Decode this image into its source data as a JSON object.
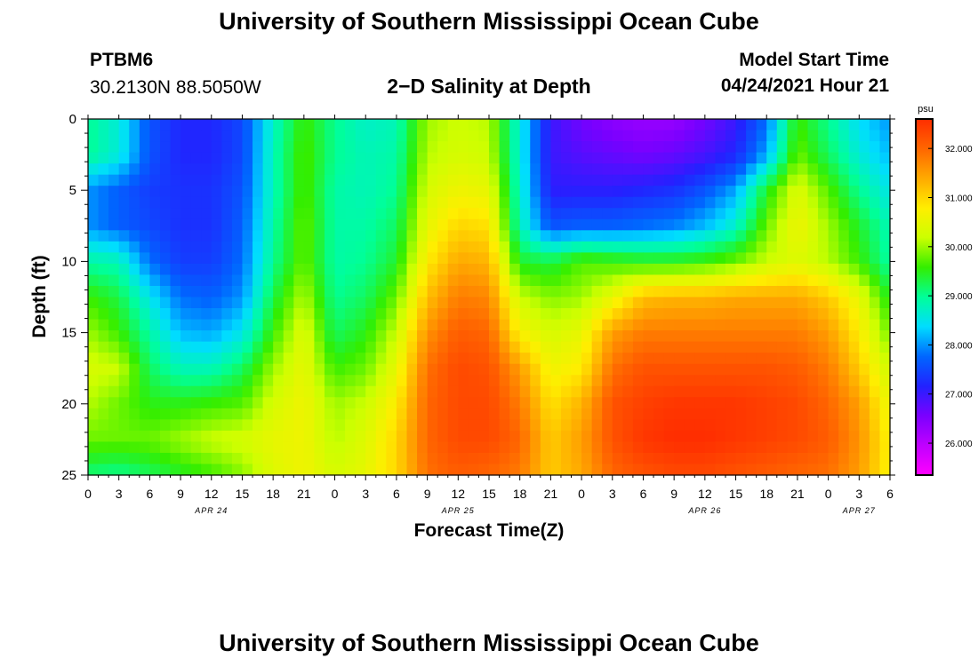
{
  "header": {
    "title": "University of Southern Mississippi Ocean Cube",
    "station_id": "PTBM6",
    "station_coords": "30.2130N  88.5050W",
    "chart_title": "2−D Salinity at Depth",
    "model_start_label": "Model Start Time",
    "model_start_value": "04/24/2021 Hour 21"
  },
  "footer": {
    "title": "University of Southern Mississippi Ocean Cube"
  },
  "colors": {
    "scale": [
      "#ff00ff",
      "#c000ff",
      "#7a00ff",
      "#2222ff",
      "#0066ff",
      "#00ddff",
      "#00ff99",
      "#33ee00",
      "#ccff00",
      "#ffee00",
      "#ffaa00",
      "#ff6600",
      "#ff2d00"
    ]
  },
  "chart_data": {
    "type": "heatmap",
    "title": "2−D Salinity at Depth",
    "xlabel": "Forecast Time(Z)",
    "ylabel": "Depth (ft)",
    "colorbar_unit": "psu",
    "x_tick_labels": [
      "0",
      "3",
      "6",
      "9",
      "12",
      "15",
      "18",
      "21",
      "0",
      "3",
      "6",
      "9",
      "12",
      "15",
      "18",
      "21",
      "0",
      "3",
      "6",
      "9",
      "12",
      "15",
      "18",
      "21",
      "0",
      "3",
      "6"
    ],
    "date_labels": [
      {
        "label": "APR 24",
        "at_tick": 4
      },
      {
        "label": "APR 25",
        "at_tick": 12
      },
      {
        "label": "APR 26",
        "at_tick": 20
      },
      {
        "label": "APR 27",
        "at_tick": 25
      }
    ],
    "y_ticks": [
      0,
      5,
      10,
      15,
      20,
      25
    ],
    "ylim": [
      0,
      25
    ],
    "x_hours_range": [
      0,
      78
    ],
    "colorbar_ticks": [
      "32.000",
      "31.000",
      "30.000",
      "29.000",
      "28.000",
      "27.000",
      "26.000"
    ],
    "colorbar_range": [
      25.35,
      32.6
    ],
    "depths_ft": [
      0,
      2.5,
      5,
      7.5,
      10,
      12.5,
      15,
      17.5,
      20,
      22.5,
      25
    ],
    "time_hours": [
      0,
      3,
      6,
      9,
      12,
      15,
      18,
      21,
      24,
      27,
      30,
      33,
      36,
      39,
      42,
      45,
      48,
      51,
      54,
      57,
      60,
      63,
      66,
      69,
      72,
      75,
      78
    ],
    "salinity_psu": [
      [
        29.0,
        28.6,
        27.6,
        27.2,
        27.2,
        27.5,
        28.7,
        29.6,
        29.0,
        28.7,
        28.8,
        30.0,
        30.2,
        30.1,
        28.6,
        27.0,
        26.6,
        26.4,
        26.3,
        26.3,
        26.6,
        27.0,
        27.8,
        29.6,
        29.0,
        28.4,
        28.0
      ],
      [
        29.0,
        28.6,
        27.6,
        27.2,
        27.2,
        27.5,
        28.8,
        29.7,
        29.0,
        28.8,
        28.9,
        30.1,
        30.3,
        30.2,
        28.6,
        27.0,
        26.8,
        26.7,
        26.6,
        26.7,
        26.9,
        27.2,
        28.1,
        29.8,
        29.2,
        28.6,
        28.2
      ],
      [
        28.0,
        27.7,
        27.4,
        27.3,
        27.3,
        27.6,
        28.8,
        29.7,
        28.9,
        28.8,
        29.0,
        30.3,
        30.6,
        30.5,
        28.7,
        27.1,
        27.1,
        27.1,
        27.2,
        27.3,
        27.6,
        28.1,
        29.4,
        30.4,
        29.7,
        29.0,
        28.5
      ],
      [
        28.0,
        27.7,
        27.5,
        27.3,
        27.3,
        27.7,
        28.9,
        29.8,
        28.9,
        28.9,
        29.2,
        30.5,
        31.0,
        30.9,
        28.8,
        27.6,
        27.7,
        27.7,
        27.8,
        27.9,
        28.2,
        28.7,
        29.8,
        30.6,
        30.0,
        29.4,
        28.8
      ],
      [
        28.9,
        28.8,
        27.8,
        27.4,
        27.4,
        27.8,
        29.0,
        29.8,
        28.9,
        29.0,
        29.4,
        30.8,
        31.4,
        31.3,
        29.4,
        29.3,
        29.7,
        29.6,
        29.5,
        29.5,
        29.6,
        29.8,
        30.2,
        30.4,
        30.1,
        29.6,
        28.9
      ],
      [
        29.6,
        29.3,
        28.5,
        27.8,
        27.7,
        28.0,
        29.3,
        30.1,
        29.0,
        29.2,
        29.8,
        31.2,
        31.8,
        31.7,
        30.2,
        29.9,
        30.0,
        30.5,
        31.2,
        31.3,
        31.3,
        31.4,
        31.4,
        31.4,
        31.1,
        30.5,
        29.4
      ],
      [
        30.0,
        29.6,
        28.9,
        28.2,
        28.1,
        28.5,
        29.6,
        30.4,
        29.2,
        29.5,
        30.2,
        31.6,
        32.1,
        32.0,
        30.7,
        30.3,
        30.5,
        31.5,
        31.8,
        31.8,
        31.8,
        31.8,
        31.8,
        31.8,
        31.5,
        30.8,
        29.8
      ],
      [
        30.3,
        30.2,
        29.2,
        28.8,
        28.8,
        29.2,
        30.0,
        30.5,
        29.6,
        29.8,
        30.5,
        31.9,
        32.3,
        32.2,
        31.5,
        30.6,
        30.8,
        31.9,
        32.2,
        32.2,
        32.2,
        32.2,
        32.2,
        32.1,
        31.8,
        31.1,
        30.2
      ],
      [
        30.1,
        29.8,
        29.5,
        29.5,
        29.6,
        29.7,
        30.3,
        30.6,
        30.0,
        30.2,
        30.8,
        32.0,
        32.3,
        32.3,
        31.8,
        30.9,
        31.3,
        32.2,
        32.4,
        32.5,
        32.5,
        32.5,
        32.4,
        32.3,
        32.0,
        31.5,
        30.5
      ],
      [
        29.8,
        29.8,
        29.8,
        30.0,
        30.2,
        30.3,
        30.5,
        30.6,
        30.1,
        30.4,
        31.0,
        32.0,
        32.3,
        32.3,
        32.0,
        31.1,
        31.5,
        32.2,
        32.5,
        32.6,
        32.6,
        32.5,
        32.4,
        32.3,
        32.1,
        31.6,
        30.7
      ],
      [
        29.1,
        29.0,
        29.2,
        29.4,
        29.6,
        29.9,
        30.4,
        30.6,
        30.3,
        30.5,
        31.0,
        31.9,
        32.1,
        32.0,
        31.8,
        31.1,
        31.4,
        32.0,
        32.2,
        32.3,
        32.3,
        32.2,
        32.1,
        32.0,
        31.9,
        31.5,
        30.7
      ]
    ]
  }
}
